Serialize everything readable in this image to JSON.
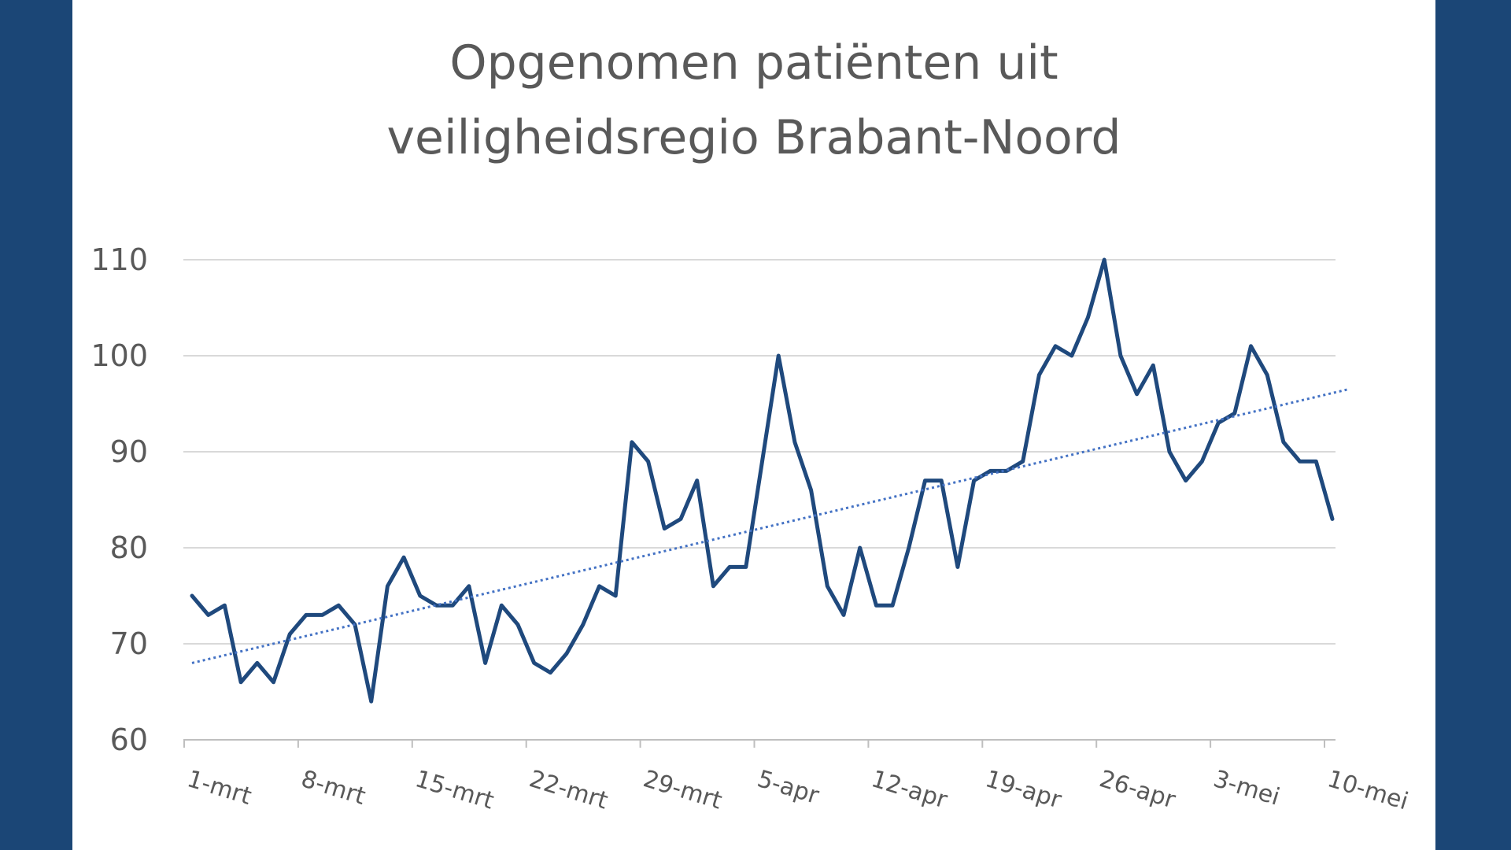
{
  "colors": {
    "background": "#1b4676",
    "panel": "#ffffff",
    "series": "#1f497d",
    "trendline": "#4472c4",
    "gridline": "#d9d9d9",
    "text": "#595959"
  },
  "chart_data": {
    "type": "line",
    "title_lines": [
      "Opgenomen patiënten uit",
      "veiligheidsregio Brabant-Noord"
    ],
    "xlabel": "",
    "ylabel": "",
    "ylim": [
      60,
      110
    ],
    "yticks": [
      60,
      70,
      80,
      90,
      100,
      110
    ],
    "grid": true,
    "x_tick_labels": [
      "1-mrt",
      "8-mrt",
      "15-mrt",
      "22-mrt",
      "29-mrt",
      "5-apr",
      "12-apr",
      "19-apr",
      "26-apr",
      "3-mei",
      "10-mei"
    ],
    "series": [
      {
        "style": "solid",
        "values": [
          75,
          73,
          74,
          66,
          68,
          66,
          71,
          73,
          73,
          74,
          72,
          64,
          76,
          79,
          75,
          74,
          74,
          76,
          68,
          74,
          72,
          68,
          67,
          69,
          72,
          76,
          75,
          91,
          89,
          82,
          83,
          87,
          76,
          78,
          78,
          89,
          100,
          91,
          86,
          76,
          73,
          80,
          74,
          74,
          80,
          87,
          87,
          78,
          87,
          88,
          88,
          89,
          98,
          101,
          100,
          104,
          110,
          100,
          96,
          99,
          90,
          87,
          89,
          93,
          94,
          101,
          98,
          91,
          89,
          89,
          83
        ]
      },
      {
        "style": "dotted",
        "type": "linear-trend",
        "values": [
          68,
          96.5
        ]
      }
    ]
  }
}
